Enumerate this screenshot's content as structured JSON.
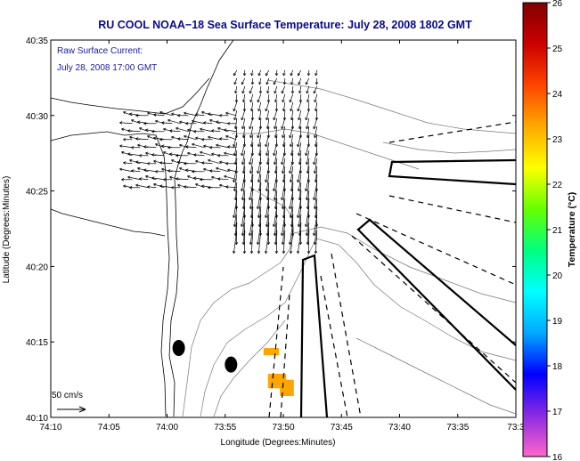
{
  "chart_data": {
    "type": "map",
    "title": "RU COOL  NOAA−18  Sea Surface Temperature:  July 28, 2008 1802 GMT",
    "annotation_lines": [
      "Raw Surface Current:",
      "July 28, 2008 17:00 GMT"
    ],
    "xlabel": "Longitude (Degrees:Minutes)",
    "ylabel": "Latitude (Degrees:Minutes)",
    "x_ticks": [
      {
        "value": -74.1667,
        "label": "74:10"
      },
      {
        "value": -74.0833,
        "label": "74:05"
      },
      {
        "value": -74.0,
        "label": "74:00"
      },
      {
        "value": -73.9167,
        "label": "73:55"
      },
      {
        "value": -73.8333,
        "label": "73:50"
      },
      {
        "value": -73.75,
        "label": "73:45"
      },
      {
        "value": -73.6667,
        "label": "73:40"
      },
      {
        "value": -73.5833,
        "label": "73:35"
      },
      {
        "value": -73.5,
        "label": "73:3"
      }
    ],
    "y_ticks": [
      {
        "value": 40.1667,
        "label": "40:10"
      },
      {
        "value": 40.25,
        "label": "40:15"
      },
      {
        "value": 40.3333,
        "label": "40:20"
      },
      {
        "value": 40.4167,
        "label": "40:25"
      },
      {
        "value": 40.5,
        "label": "40:30"
      },
      {
        "value": 40.5833,
        "label": "40:35"
      }
    ],
    "xlim": [
      -74.1667,
      -73.5
    ],
    "ylim": [
      40.1667,
      40.5833
    ],
    "scale_arrow": {
      "label": "50 cm/s",
      "speed_cm_s": 50
    },
    "colorbar": {
      "label": "Temperature (°C)",
      "min": 16,
      "max": 26,
      "ticks": [
        16,
        17,
        18,
        19,
        20,
        21,
        22,
        23,
        24,
        25,
        26
      ],
      "colors": [
        "#ff66cc",
        "#8a2be2",
        "#0000ff",
        "#00aaff",
        "#00ffff",
        "#00ff80",
        "#66ff00",
        "#ffff00",
        "#ffaa00",
        "#ff4400",
        "#cc0000",
        "#800000"
      ]
    },
    "sst_patches": [
      {
        "lon": -73.8617,
        "lat": 40.2433,
        "w": 0.022,
        "h": 0.008,
        "temp": 23.8
      },
      {
        "lon": -73.8553,
        "lat": 40.2148,
        "w": 0.026,
        "h": 0.016,
        "temp": 23.8
      },
      {
        "lon": -73.8383,
        "lat": 40.2083,
        "w": 0.02,
        "h": 0.018,
        "temp": 23.8
      }
    ],
    "buoys": [
      {
        "lon": -73.9833,
        "lat": 40.2433
      },
      {
        "lon": -73.9083,
        "lat": 40.225
      }
    ],
    "current_field": {
      "region1": {
        "lon_range": [
          -74.05,
          -73.9
        ],
        "lat_range": [
          40.42,
          40.5
        ]
      },
      "region2": {
        "lon_range": [
          -73.9,
          -73.78
        ],
        "lat_range": [
          40.37,
          40.55
        ]
      }
    }
  }
}
